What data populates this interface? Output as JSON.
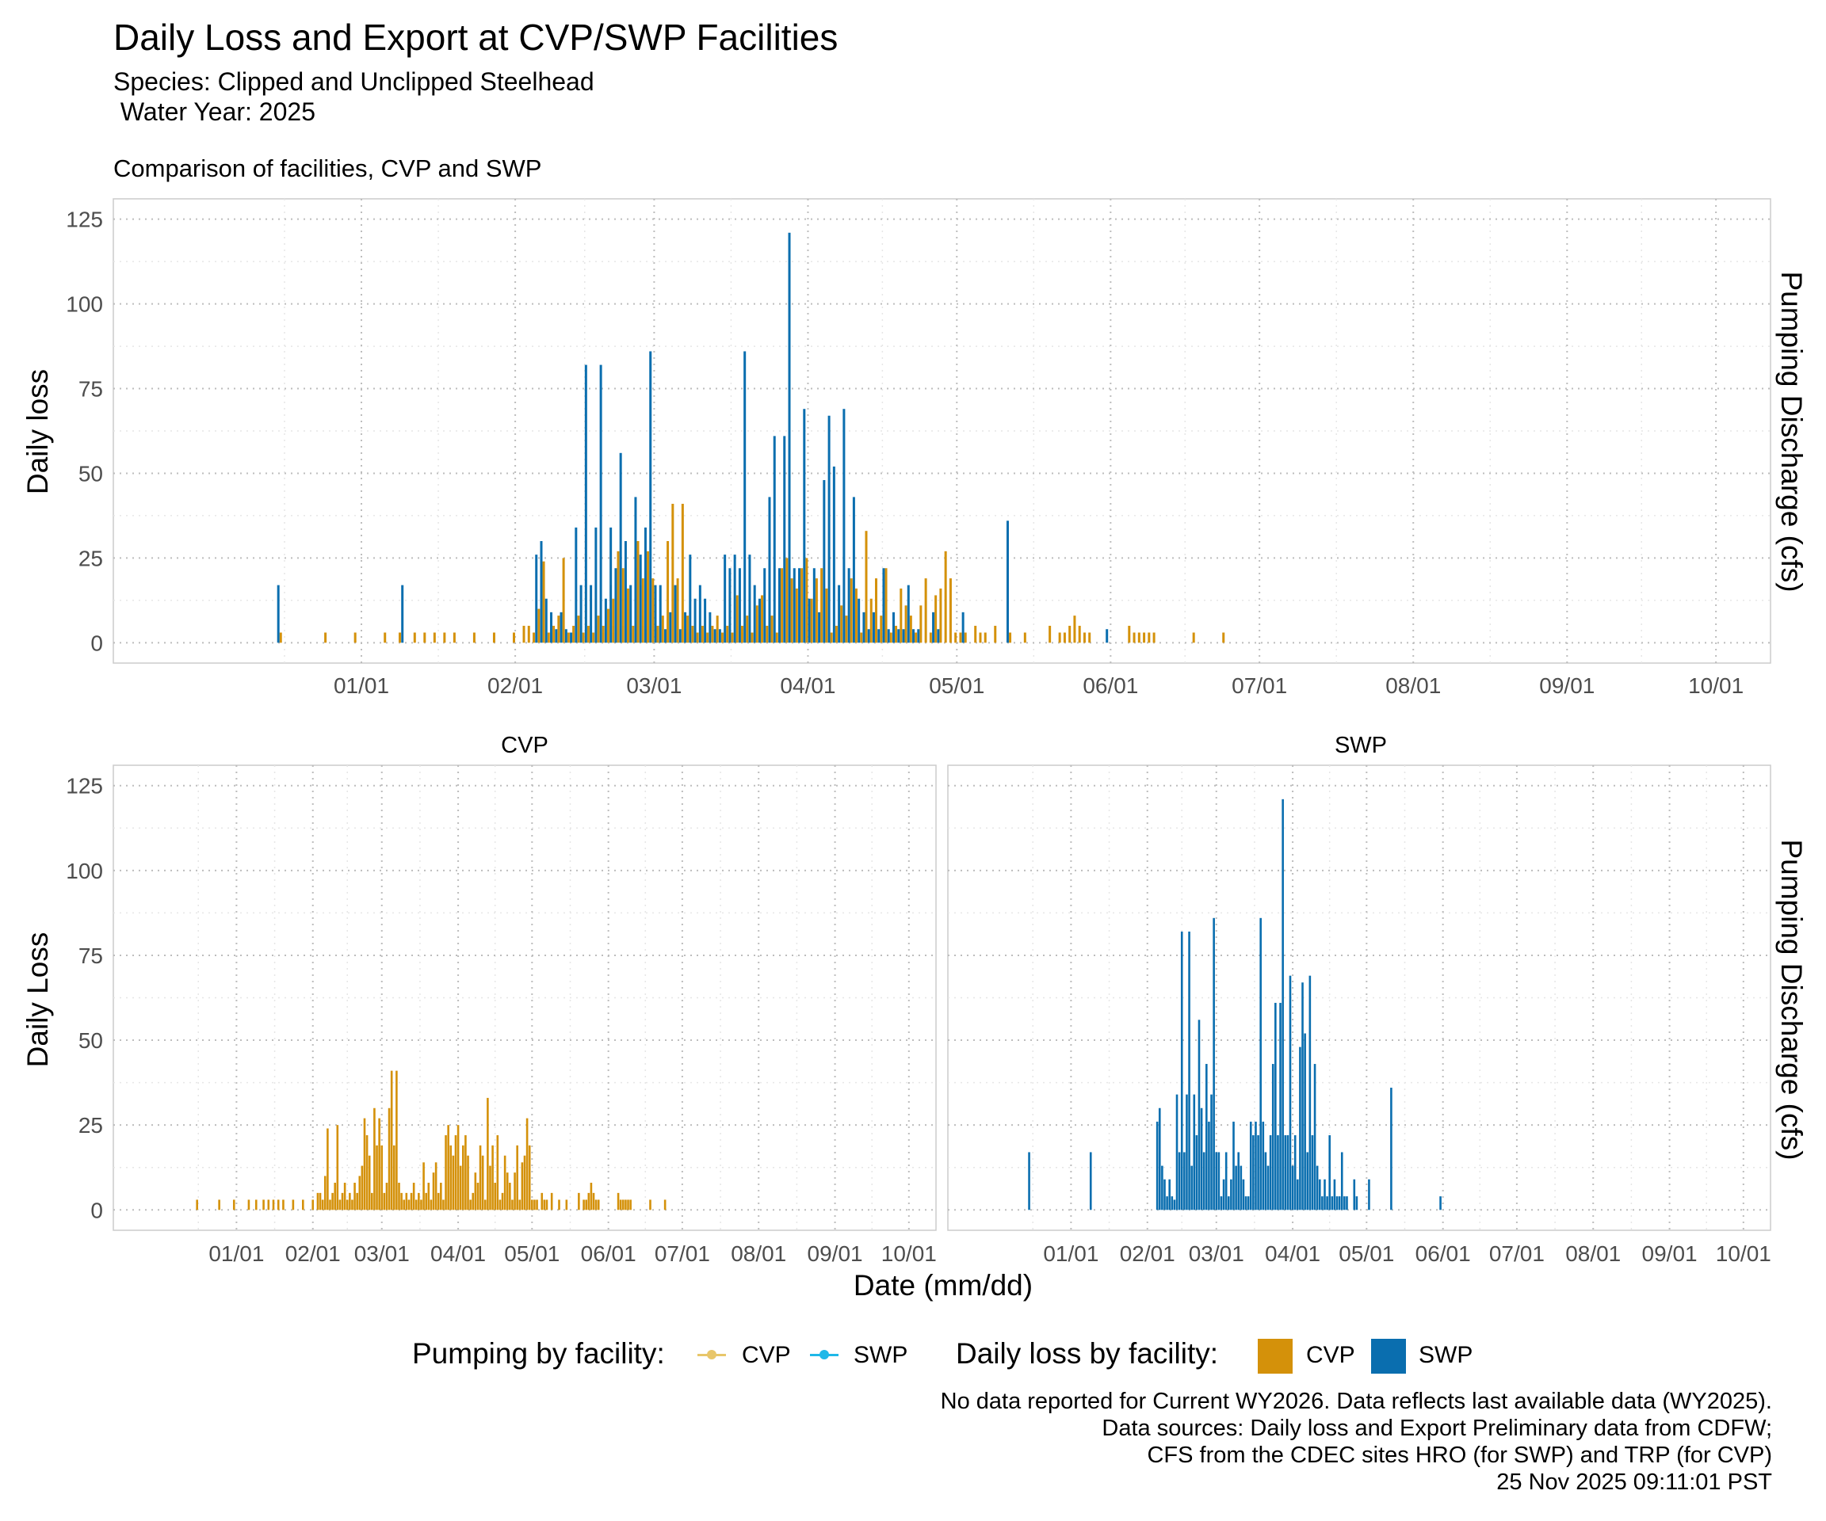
{
  "title": "Daily Loss and Export at CVP/SWP Facilities",
  "subtitle_lines": [
    "Species: Clipped and Unclipped Steelhead",
    " Water Year: 2025"
  ],
  "top_panel_title": "Comparison of facilities, CVP and SWP",
  "top_y_label": "Daily loss",
  "bottom_y_label": "Daily Loss",
  "right_axis_label": "Pumping Discharge (cfs)",
  "x_label": "Date (mm/dd)",
  "facet_labels": [
    "CVP",
    "SWP"
  ],
  "legend": {
    "pumping_title": "Pumping by facility:",
    "pumping_items": [
      {
        "label": "CVP",
        "color": "#E8C66A"
      },
      {
        "label": "SWP",
        "color": "#1FB8E8"
      }
    ],
    "loss_title": "Daily loss by facility:",
    "loss_items": [
      {
        "label": "CVP",
        "color": "#D4910A"
      },
      {
        "label": "SWP",
        "color": "#0A6EAF"
      }
    ]
  },
  "caption_lines": [
    "No data reported for Current WY2026. Data reflects last available data (WY2025).",
    "Data sources: Daily loss and Export Preliminary data from CDFW;",
    "CFS from the CDEC sites HRO (for SWP) and TRP (for CVP)",
    "25 Nov 2025 09:11:01 PST"
  ],
  "chart_data": {
    "type": "bar",
    "x_axis": {
      "type": "date",
      "range": [
        "2024-11-12",
        "2025-10-12"
      ],
      "tick_labels": [
        "01/01",
        "02/01",
        "03/01",
        "04/01",
        "05/01",
        "06/01",
        "07/01",
        "08/01",
        "09/01",
        "10/01"
      ],
      "tick_dates": [
        "2025-01-01",
        "2025-02-01",
        "2025-03-01",
        "2025-04-01",
        "2025-05-01",
        "2025-06-01",
        "2025-07-01",
        "2025-08-01",
        "2025-09-01",
        "2025-10-01"
      ]
    },
    "y_axis": {
      "range": [
        -6,
        131
      ],
      "ticks": [
        0,
        25,
        50,
        75,
        100,
        125
      ]
    },
    "grid": true,
    "legend_position": "bottom",
    "series": [
      {
        "name": "CVP",
        "color": "#D4910A",
        "points": [
          [
            "2024-12-16",
            3
          ],
          [
            "2024-12-25",
            3
          ],
          [
            "2024-12-31",
            3
          ],
          [
            "2025-01-06",
            3
          ],
          [
            "2025-01-09",
            3
          ],
          [
            "2025-01-12",
            3
          ],
          [
            "2025-01-14",
            3
          ],
          [
            "2025-01-16",
            3
          ],
          [
            "2025-01-18",
            3
          ],
          [
            "2025-01-20",
            3
          ],
          [
            "2025-01-24",
            3
          ],
          [
            "2025-01-28",
            3
          ],
          [
            "2025-02-01",
            3
          ],
          [
            "2025-02-03",
            5
          ],
          [
            "2025-02-04",
            5
          ],
          [
            "2025-02-05",
            3
          ],
          [
            "2025-02-06",
            10
          ],
          [
            "2025-02-07",
            24
          ],
          [
            "2025-02-08",
            3
          ],
          [
            "2025-02-09",
            5
          ],
          [
            "2025-02-10",
            8
          ],
          [
            "2025-02-11",
            25
          ],
          [
            "2025-02-12",
            3
          ],
          [
            "2025-02-13",
            5
          ],
          [
            "2025-02-14",
            8
          ],
          [
            "2025-02-15",
            3
          ],
          [
            "2025-02-16",
            5
          ],
          [
            "2025-02-17",
            3
          ],
          [
            "2025-02-18",
            8
          ],
          [
            "2025-02-19",
            5
          ],
          [
            "2025-02-20",
            10
          ],
          [
            "2025-02-21",
            13
          ],
          [
            "2025-02-22",
            27
          ],
          [
            "2025-02-23",
            22
          ],
          [
            "2025-02-24",
            16
          ],
          [
            "2025-02-25",
            5
          ],
          [
            "2025-02-26",
            30
          ],
          [
            "2025-02-27",
            19
          ],
          [
            "2025-02-28",
            27
          ],
          [
            "2025-03-01",
            19
          ],
          [
            "2025-03-02",
            5
          ],
          [
            "2025-03-03",
            8
          ],
          [
            "2025-03-04",
            30
          ],
          [
            "2025-03-05",
            41
          ],
          [
            "2025-03-06",
            19
          ],
          [
            "2025-03-07",
            41
          ],
          [
            "2025-03-08",
            8
          ],
          [
            "2025-03-09",
            5
          ],
          [
            "2025-03-10",
            3
          ],
          [
            "2025-03-11",
            5
          ],
          [
            "2025-03-12",
            3
          ],
          [
            "2025-03-13",
            5
          ],
          [
            "2025-03-14",
            8
          ],
          [
            "2025-03-15",
            3
          ],
          [
            "2025-03-16",
            5
          ],
          [
            "2025-03-17",
            3
          ],
          [
            "2025-03-18",
            14
          ],
          [
            "2025-03-19",
            5
          ],
          [
            "2025-03-20",
            8
          ],
          [
            "2025-03-21",
            3
          ],
          [
            "2025-03-22",
            11
          ],
          [
            "2025-03-23",
            14
          ],
          [
            "2025-03-24",
            5
          ],
          [
            "2025-03-25",
            8
          ],
          [
            "2025-03-26",
            3
          ],
          [
            "2025-03-27",
            22
          ],
          [
            "2025-03-28",
            25
          ],
          [
            "2025-03-29",
            19
          ],
          [
            "2025-03-30",
            16
          ],
          [
            "2025-03-31",
            22
          ],
          [
            "2025-04-01",
            25
          ],
          [
            "2025-04-02",
            13
          ],
          [
            "2025-04-03",
            19
          ],
          [
            "2025-04-04",
            22
          ],
          [
            "2025-04-05",
            16
          ],
          [
            "2025-04-06",
            3
          ],
          [
            "2025-04-07",
            5
          ],
          [
            "2025-04-08",
            11
          ],
          [
            "2025-04-09",
            8
          ],
          [
            "2025-04-10",
            19
          ],
          [
            "2025-04-11",
            16
          ],
          [
            "2025-04-12",
            3
          ],
          [
            "2025-04-13",
            33
          ],
          [
            "2025-04-14",
            13
          ],
          [
            "2025-04-15",
            19
          ],
          [
            "2025-04-16",
            8
          ],
          [
            "2025-04-17",
            22
          ],
          [
            "2025-04-18",
            3
          ],
          [
            "2025-04-19",
            5
          ],
          [
            "2025-04-20",
            16
          ],
          [
            "2025-04-21",
            11
          ],
          [
            "2025-04-22",
            8
          ],
          [
            "2025-04-23",
            3
          ],
          [
            "2025-04-24",
            11
          ],
          [
            "2025-04-25",
            19
          ],
          [
            "2025-04-26",
            3
          ],
          [
            "2025-04-27",
            14
          ],
          [
            "2025-04-28",
            16
          ],
          [
            "2025-04-29",
            27
          ],
          [
            "2025-04-30",
            19
          ],
          [
            "2025-05-01",
            3
          ],
          [
            "2025-05-02",
            3
          ],
          [
            "2025-05-03",
            3
          ],
          [
            "2025-05-05",
            5
          ],
          [
            "2025-05-06",
            3
          ],
          [
            "2025-05-07",
            3
          ],
          [
            "2025-05-09",
            5
          ],
          [
            "2025-05-12",
            3
          ],
          [
            "2025-05-15",
            3
          ],
          [
            "2025-05-20",
            5
          ],
          [
            "2025-05-22",
            3
          ],
          [
            "2025-05-23",
            3
          ],
          [
            "2025-05-24",
            5
          ],
          [
            "2025-05-25",
            8
          ],
          [
            "2025-05-26",
            5
          ],
          [
            "2025-05-27",
            3
          ],
          [
            "2025-05-28",
            3
          ],
          [
            "2025-06-05",
            5
          ],
          [
            "2025-06-06",
            3
          ],
          [
            "2025-06-07",
            3
          ],
          [
            "2025-06-08",
            3
          ],
          [
            "2025-06-09",
            3
          ],
          [
            "2025-06-10",
            3
          ],
          [
            "2025-06-18",
            3
          ],
          [
            "2025-06-24",
            3
          ]
        ]
      },
      {
        "name": "SWP",
        "color": "#0A6EAF",
        "points": [
          [
            "2024-12-15",
            17
          ],
          [
            "2025-01-09",
            17
          ],
          [
            "2025-02-05",
            26
          ],
          [
            "2025-02-06",
            30
          ],
          [
            "2025-02-07",
            13
          ],
          [
            "2025-02-08",
            9
          ],
          [
            "2025-02-09",
            4
          ],
          [
            "2025-02-10",
            9
          ],
          [
            "2025-02-11",
            4
          ],
          [
            "2025-02-12",
            3
          ],
          [
            "2025-02-13",
            34
          ],
          [
            "2025-02-14",
            17
          ],
          [
            "2025-02-15",
            82
          ],
          [
            "2025-02-16",
            17
          ],
          [
            "2025-02-17",
            34
          ],
          [
            "2025-02-18",
            82
          ],
          [
            "2025-02-19",
            13
          ],
          [
            "2025-02-20",
            34
          ],
          [
            "2025-02-21",
            22
          ],
          [
            "2025-02-22",
            56
          ],
          [
            "2025-02-23",
            30
          ],
          [
            "2025-02-24",
            17
          ],
          [
            "2025-02-25",
            43
          ],
          [
            "2025-02-26",
            26
          ],
          [
            "2025-02-27",
            34
          ],
          [
            "2025-02-28",
            86
          ],
          [
            "2025-03-01",
            17
          ],
          [
            "2025-03-02",
            17
          ],
          [
            "2025-03-03",
            4
          ],
          [
            "2025-03-04",
            9
          ],
          [
            "2025-03-05",
            17
          ],
          [
            "2025-03-06",
            4
          ],
          [
            "2025-03-07",
            9
          ],
          [
            "2025-03-08",
            26
          ],
          [
            "2025-03-09",
            13
          ],
          [
            "2025-03-10",
            17
          ],
          [
            "2025-03-11",
            13
          ],
          [
            "2025-03-12",
            9
          ],
          [
            "2025-03-13",
            4
          ],
          [
            "2025-03-14",
            4
          ],
          [
            "2025-03-15",
            26
          ],
          [
            "2025-03-16",
            22
          ],
          [
            "2025-03-17",
            26
          ],
          [
            "2025-03-18",
            22
          ],
          [
            "2025-03-19",
            86
          ],
          [
            "2025-03-20",
            26
          ],
          [
            "2025-03-21",
            17
          ],
          [
            "2025-03-22",
            13
          ],
          [
            "2025-03-23",
            22
          ],
          [
            "2025-03-24",
            43
          ],
          [
            "2025-03-25",
            61
          ],
          [
            "2025-03-26",
            22
          ],
          [
            "2025-03-27",
            61
          ],
          [
            "2025-03-28",
            121
          ],
          [
            "2025-03-29",
            22
          ],
          [
            "2025-03-30",
            22
          ],
          [
            "2025-03-31",
            69
          ],
          [
            "2025-04-01",
            13
          ],
          [
            "2025-04-02",
            22
          ],
          [
            "2025-04-03",
            9
          ],
          [
            "2025-04-04",
            48
          ],
          [
            "2025-04-05",
            67
          ],
          [
            "2025-04-06",
            52
          ],
          [
            "2025-04-07",
            17
          ],
          [
            "2025-04-08",
            69
          ],
          [
            "2025-04-09",
            22
          ],
          [
            "2025-04-10",
            43
          ],
          [
            "2025-04-11",
            13
          ],
          [
            "2025-04-12",
            9
          ],
          [
            "2025-04-13",
            4
          ],
          [
            "2025-04-14",
            9
          ],
          [
            "2025-04-15",
            4
          ],
          [
            "2025-04-16",
            22
          ],
          [
            "2025-04-17",
            4
          ],
          [
            "2025-04-18",
            9
          ],
          [
            "2025-04-19",
            4
          ],
          [
            "2025-04-20",
            4
          ],
          [
            "2025-04-21",
            17
          ],
          [
            "2025-04-22",
            4
          ],
          [
            "2025-04-23",
            4
          ],
          [
            "2025-04-26",
            9
          ],
          [
            "2025-04-27",
            4
          ],
          [
            "2025-05-02",
            9
          ],
          [
            "2025-05-11",
            36
          ],
          [
            "2025-05-31",
            4
          ]
        ]
      }
    ]
  }
}
